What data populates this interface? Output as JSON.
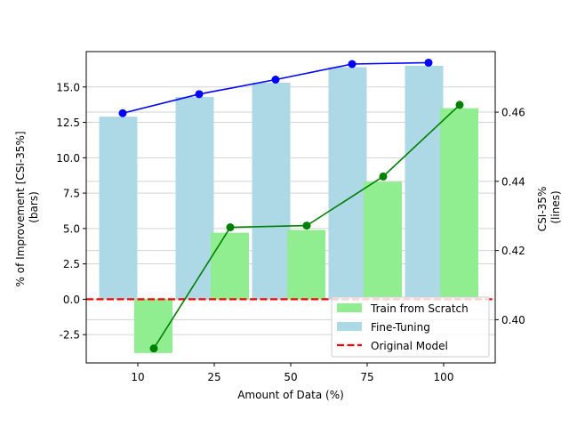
{
  "chart_data": {
    "type": "bar",
    "title": "",
    "categories": [
      "10",
      "25",
      "50",
      "75",
      "100"
    ],
    "xlabel": "Amount of Data (%)",
    "ylabel_left_line1": "% of Improvement [CSI-35%]",
    "ylabel_left_line2": "(bars)",
    "ylabel_right_line1": "CSI-35%",
    "ylabel_right_line2": "(lines)",
    "ylim_left": [
      -4.5,
      17.5
    ],
    "ylim_right": [
      0.3875,
      0.4775
    ],
    "yticks_left": [
      -2.5,
      0.0,
      2.5,
      5.0,
      7.5,
      10.0,
      12.5,
      15.0
    ],
    "yticks_right": [
      0.4,
      0.42,
      0.44,
      0.46
    ],
    "grid": "horizontal",
    "legend_position": "lower-right",
    "bar_series": [
      {
        "name": "Fine-Tuning",
        "color": "#add8e6",
        "values": [
          12.9,
          14.3,
          15.3,
          16.4,
          16.5
        ]
      },
      {
        "name": "Train from Scratch",
        "color": "#90ee90",
        "values": [
          -3.8,
          4.7,
          4.9,
          8.3,
          13.5
        ]
      }
    ],
    "line_series": [
      {
        "color": "#0000ff",
        "values": [
          0.4597,
          0.4652,
          0.4694,
          0.4739,
          0.4743
        ]
      },
      {
        "color": "#008000",
        "values": [
          0.3917,
          0.4267,
          0.4272,
          0.4414,
          0.4621
        ]
      }
    ],
    "reference_line": {
      "name": "Original Model",
      "color": "#ff0000",
      "value": 0.0
    }
  }
}
